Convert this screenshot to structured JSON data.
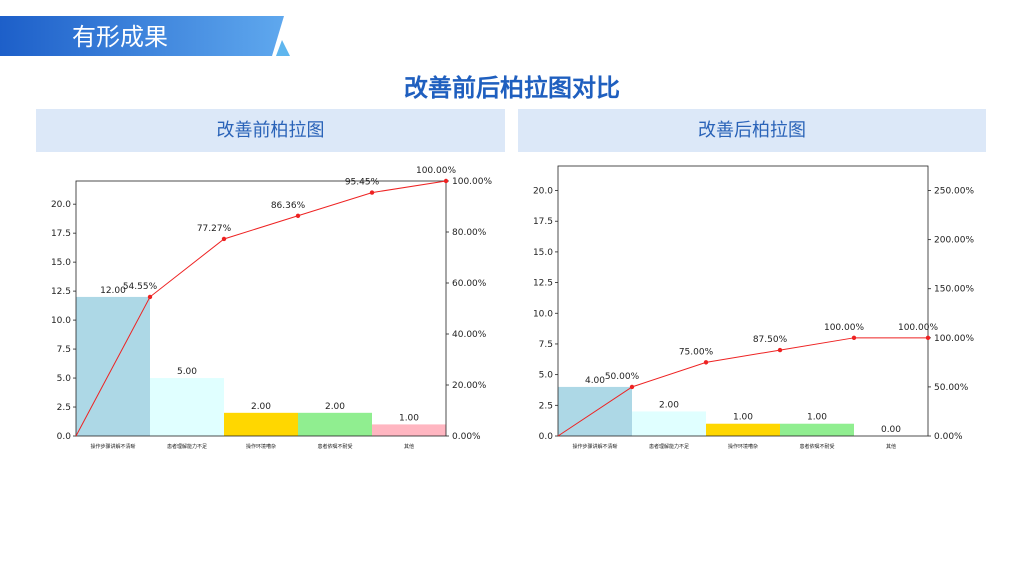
{
  "header": {
    "section_title": "有形成果"
  },
  "slide_title": "改善前后柏拉图对比",
  "panels": {
    "left": {
      "title": "改善前柏拉图"
    },
    "right": {
      "title": "改善后柏拉图"
    }
  },
  "colors": {
    "banner": "#2a76d6",
    "title": "#1f5fbf",
    "panel_header_bg": "#dce8f8",
    "line": "#ee2222",
    "bars": [
      "#add8e6",
      "#e0ffff",
      "#ffd700",
      "#90ee90",
      "#ffb6c1"
    ]
  },
  "chart_data": [
    {
      "type": "bar",
      "title": "改善前柏拉图",
      "categories": [
        "操作步骤讲解不清晰",
        "患者理解能力不足",
        "操作环境嘈杂",
        "患者依嘱不耐受",
        "其他"
      ],
      "values": [
        12,
        5,
        2,
        2,
        1
      ],
      "value_labels": [
        "12.00",
        "5.00",
        "2.00",
        "2.00",
        "1.00"
      ],
      "cumulative_percent": [
        54.55,
        77.27,
        86.36,
        95.45,
        100.0
      ],
      "cumulative_labels": [
        "54.55%",
        "77.27%",
        "86.36%",
        "95.45%",
        "100.00%"
      ],
      "highlight_point": 1,
      "ylim": [
        0,
        22
      ],
      "yticks": [
        "0.0",
        "2.5",
        "5.0",
        "7.5",
        "10.0",
        "12.5",
        "15.0",
        "17.5",
        "20.0"
      ],
      "y2lim": [
        0,
        100
      ],
      "y2ticks": [
        "0.00%",
        "20.00%",
        "40.00%",
        "60.00%",
        "80.00%",
        "100.00%"
      ],
      "bar_colors": [
        "#add8e6",
        "#e0ffff",
        "#ffd700",
        "#90ee90",
        "#ffb6c1"
      ],
      "grid": false
    },
    {
      "type": "bar",
      "title": "改善后柏拉图",
      "categories": [
        "操作步骤讲解不清晰",
        "患者理解能力不足",
        "操作环境嘈杂",
        "患者依嘱不耐受",
        "其他"
      ],
      "values": [
        4,
        2,
        1,
        1,
        0
      ],
      "value_labels": [
        "4.00",
        "2.00",
        "1.00",
        "1.00",
        "0.00"
      ],
      "cumulative_percent": [
        50.0,
        75.0,
        87.5,
        100.0,
        100.0
      ],
      "cumulative_labels": [
        "50.00%",
        "75.00%",
        "87.50%",
        "100.00%",
        "100.00%"
      ],
      "highlight_point": 1,
      "ylim": [
        0,
        22
      ],
      "yticks": [
        "0.0",
        "2.5",
        "5.0",
        "7.5",
        "10.0",
        "12.5",
        "15.0",
        "17.5",
        "20.0"
      ],
      "y2lim": [
        0,
        275
      ],
      "y2ticks": [
        "0.00%",
        "50.00%",
        "100.00%",
        "150.00%",
        "200.00%",
        "250.00%"
      ],
      "bar_colors": [
        "#add8e6",
        "#e0ffff",
        "#ffd700",
        "#90ee90",
        "#ffb6c1"
      ],
      "grid": false
    }
  ]
}
